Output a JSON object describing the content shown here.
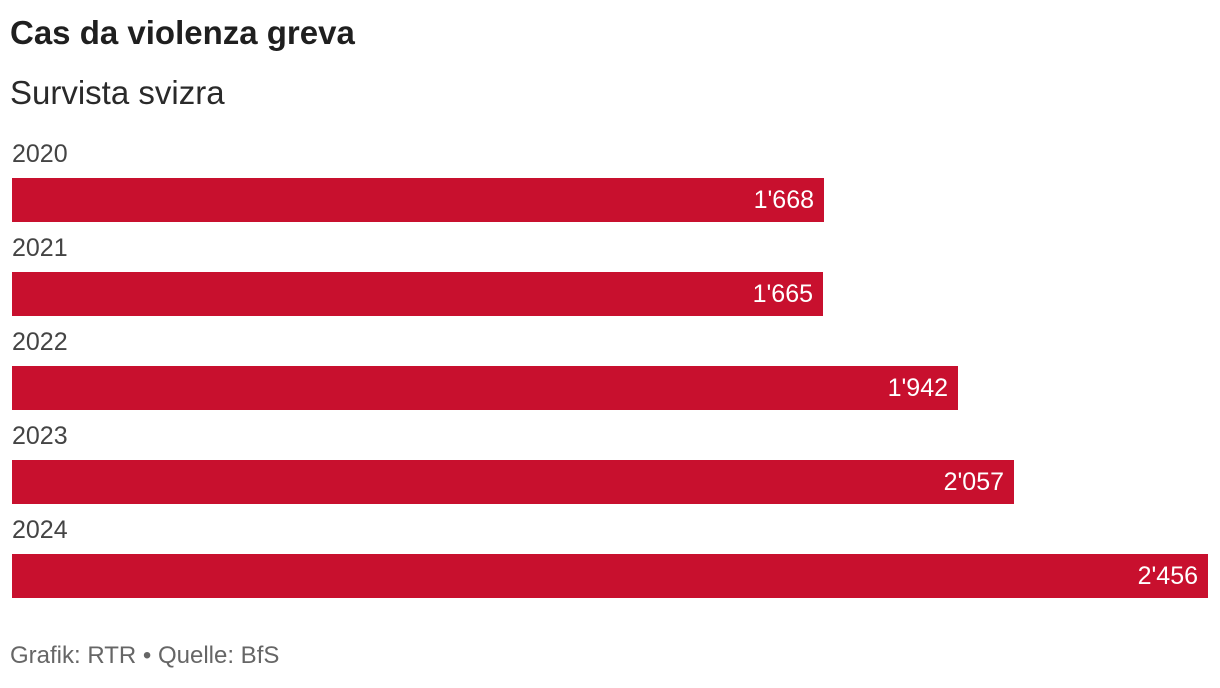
{
  "header": {
    "title": "Cas da violenza greva",
    "subtitle": "Survista svizra"
  },
  "footer": {
    "source": "Grafik: RTR • Quelle: BfS"
  },
  "colors": {
    "bar": "#c8102e",
    "value_text": "#ffffff"
  },
  "chart_data": {
    "type": "bar",
    "orientation": "horizontal",
    "title": "Cas da violenza greva",
    "subtitle": "Survista svizra",
    "categories": [
      "2020",
      "2021",
      "2022",
      "2023",
      "2024"
    ],
    "values": [
      1668,
      1665,
      1942,
      2057,
      2456
    ],
    "value_labels": [
      "1'668",
      "1'665",
      "1'942",
      "2'057",
      "2'456"
    ],
    "xlim": [
      0,
      2456
    ],
    "grid": false,
    "legend": "none"
  }
}
